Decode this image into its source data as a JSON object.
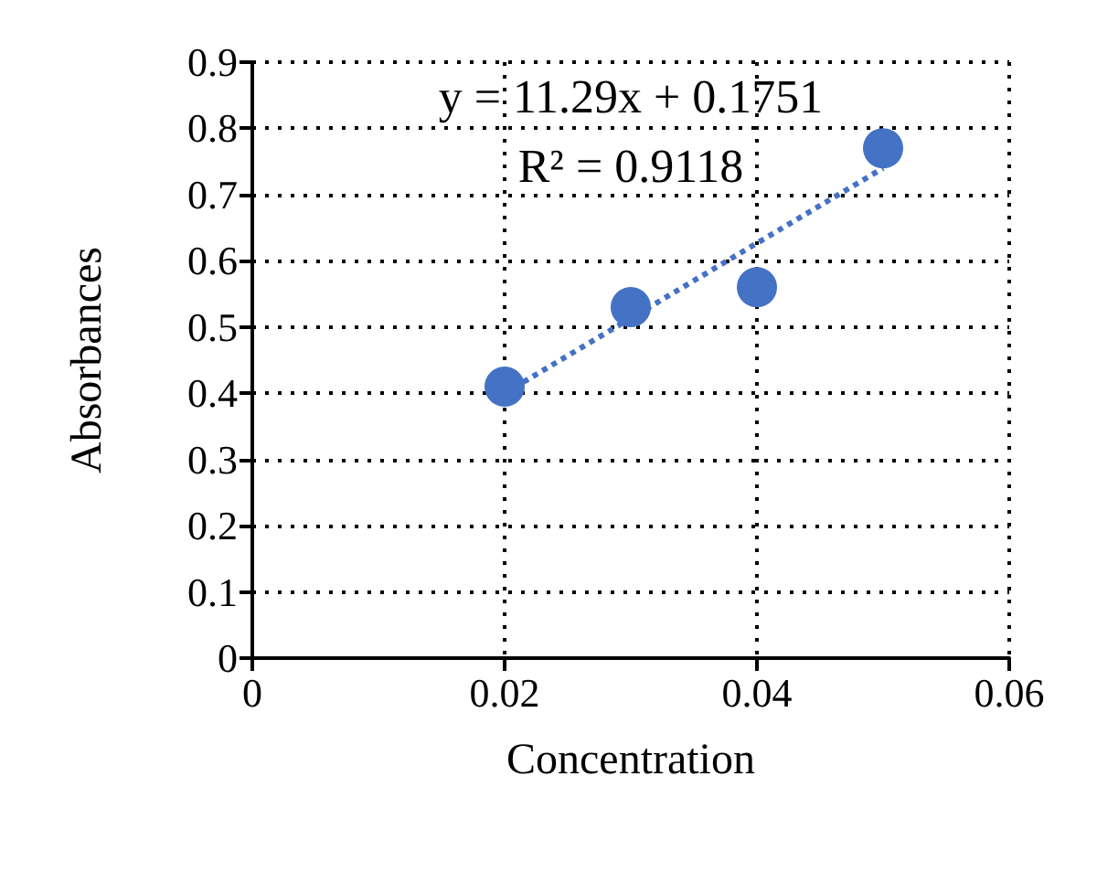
{
  "chart_data": {
    "type": "scatter",
    "xlabel": "Concentration",
    "ylabel": "Absorbances",
    "x": [
      0.02,
      0.03,
      0.04,
      0.05
    ],
    "series": [
      {
        "color": "#4472c4",
        "values": [
          0.41,
          0.53,
          0.56,
          0.77
        ],
        "marker": "circle"
      },
      {
        "type": "line",
        "color": "#4472c4",
        "x": [
          0.02,
          0.05
        ],
        "values": [
          0.4,
          0.74
        ],
        "line_style": "dotted",
        "marker": "none"
      }
    ],
    "xlim": [
      0,
      0.06
    ],
    "xticks": [
      0,
      0.02,
      0.04,
      0.06
    ],
    "ylim": [
      0,
      0.9
    ],
    "yticks": [
      0,
      0.1,
      0.2,
      0.3,
      0.4,
      0.5,
      0.6,
      0.7,
      0.8,
      0.9
    ],
    "grid": true,
    "annotations": [
      "y = 11.29x + 0.1751",
      "R² = 0.9118"
    ]
  }
}
